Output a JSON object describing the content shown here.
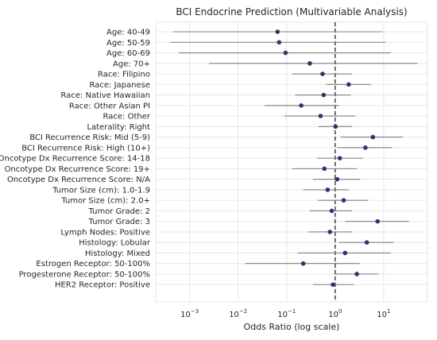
{
  "chart_data": {
    "type": "forest",
    "title": "BCI Endocrine Prediction (Multivariable Analysis)",
    "xlabel": "Odds Ratio (log scale)",
    "xscale": "log",
    "xlim": [
      0.0002,
      80
    ],
    "x_ticks": [
      {
        "value": 0.001,
        "base": "10",
        "exp": "−3"
      },
      {
        "value": 0.01,
        "base": "10",
        "exp": "−2"
      },
      {
        "value": 0.1,
        "base": "10",
        "exp": "−1"
      },
      {
        "value": 1,
        "base": "10",
        "exp": "0"
      },
      {
        "value": 10,
        "base": "10",
        "exp": "1"
      }
    ],
    "reference_line": 1,
    "grid": true,
    "colors": {
      "point": "#2e3470",
      "line": "#7f7f7f",
      "grid": "#e6e6e6",
      "refline": "#262626"
    },
    "rows": [
      {
        "label": "Age: 40-49",
        "or": 0.065,
        "lo": 0.00045,
        "hi": 9.5
      },
      {
        "label": "Age: 50-59",
        "or": 0.07,
        "lo": 0.0004,
        "hi": 11
      },
      {
        "label": "Age: 60-69",
        "or": 0.095,
        "lo": 0.0006,
        "hi": 14
      },
      {
        "label": "Age: 70+",
        "or": 0.3,
        "lo": 0.0025,
        "hi": 50
      },
      {
        "label": "Race: Filipino",
        "or": 0.55,
        "lo": 0.13,
        "hi": 2.2
      },
      {
        "label": "Race: Japanese",
        "or": 1.9,
        "lo": 0.65,
        "hi": 5.5
      },
      {
        "label": "Race: Native Hawaiian",
        "or": 0.58,
        "lo": 0.15,
        "hi": 2.1
      },
      {
        "label": "Race: Other Asian PI",
        "or": 0.2,
        "lo": 0.035,
        "hi": 1.2
      },
      {
        "label": "Race: Other",
        "or": 0.5,
        "lo": 0.09,
        "hi": 2.6
      },
      {
        "label": "Laterality: Right",
        "or": 1.02,
        "lo": 0.45,
        "hi": 2.2
      },
      {
        "label": "BCI Recurrence Risk: Mid (5-9)",
        "or": 6,
        "lo": 1.3,
        "hi": 25
      },
      {
        "label": "BCI Recurrence Risk: High (10+)",
        "or": 4.2,
        "lo": 1.1,
        "hi": 15
      },
      {
        "label": "Oncotype Dx Recurrence Score: 14-18",
        "or": 1.25,
        "lo": 0.42,
        "hi": 3.8
      },
      {
        "label": "Oncotype Dx Recurrence Score: 19+",
        "or": 0.6,
        "lo": 0.13,
        "hi": 2.8
      },
      {
        "label": "Oncotype Dx Recurrence Score: N/A",
        "or": 1.1,
        "lo": 0.35,
        "hi": 3.3
      },
      {
        "label": "Tumor Size (cm): 1.0-1.9",
        "or": 0.7,
        "lo": 0.22,
        "hi": 1.9
      },
      {
        "label": "Tumor Size (cm): 2.0+",
        "or": 1.5,
        "lo": 0.45,
        "hi": 4.8
      },
      {
        "label": "Tumor Grade: 2",
        "or": 0.85,
        "lo": 0.3,
        "hi": 2.2
      },
      {
        "label": "Tumor Grade: 3",
        "or": 7.5,
        "lo": 1.6,
        "hi": 33
      },
      {
        "label": "Lymph Nodes: Positive",
        "or": 0.78,
        "lo": 0.28,
        "hi": 2.2
      },
      {
        "label": "Histology: Lobular",
        "or": 4.5,
        "lo": 1.2,
        "hi": 16
      },
      {
        "label": "Histology: Mixed",
        "or": 1.6,
        "lo": 0.17,
        "hi": 14
      },
      {
        "label": "Estrogen Receptor: 50-100%",
        "or": 0.22,
        "lo": 0.014,
        "hi": 3.2
      },
      {
        "label": "Progesterone Receptor: 50-100%",
        "or": 2.8,
        "lo": 1.0,
        "hi": 7.8
      },
      {
        "label": "HER2 Receptor: Positive",
        "or": 0.9,
        "lo": 0.35,
        "hi": 2.4
      }
    ]
  }
}
